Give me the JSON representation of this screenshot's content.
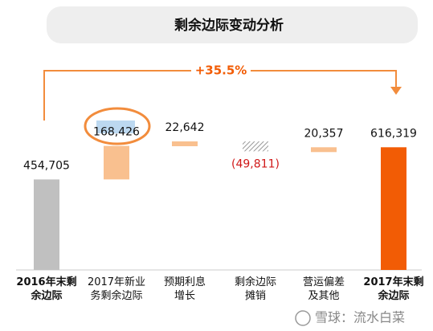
{
  "chart_data": {
    "type": "waterfall",
    "title": "剩余边际变动分析",
    "categories": [
      "2016年末剩\n余边际",
      "2017年新业\n务剩余边际",
      "预期利息\n增长",
      "剩余边际\n摊销",
      "营运偏差\n及其他",
      "2017年末剩\n余边际"
    ],
    "values": [
      454705,
      168426,
      22642,
      -49811,
      20357,
      616319
    ],
    "value_labels": [
      "454,705",
      "168,426",
      "22,642",
      "(49,811)",
      "20,357",
      "616,319"
    ],
    "colors": [
      "#c0c0c0",
      "#f9c08f",
      "#f9c08f",
      "#b0b0b0",
      "#f9c08f",
      "#f25c05"
    ],
    "annotation": "+35.5%",
    "watermark": "雪球：流水白菜"
  }
}
